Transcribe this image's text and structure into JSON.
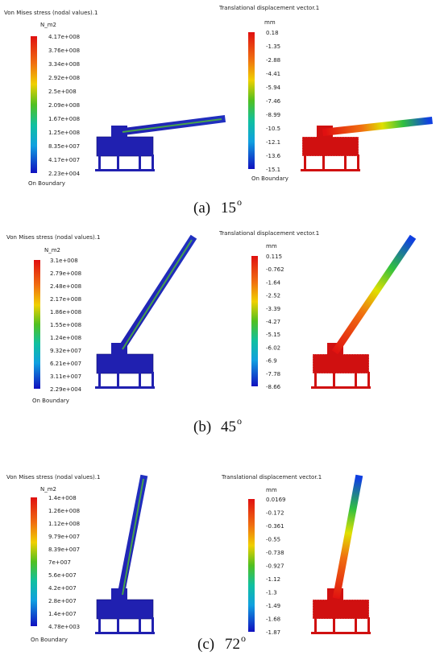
{
  "panels": [
    {
      "stress": {
        "title": "Von Mises stress (nodal values).1",
        "unit": "N_m2",
        "labels": [
          "4.17e+008",
          "3.76e+008",
          "3.34e+008",
          "2.92e+008",
          "2.5e+008",
          "2.09e+008",
          "1.67e+008",
          "1.25e+008",
          "8.35e+007",
          "4.17e+007",
          "2.23e+004"
        ],
        "footer": "On Boundary"
      },
      "displacement": {
        "title": "Translational displacement vector.1",
        "unit": "mm",
        "labels": [
          "0.18",
          "-1.35",
          "-2.88",
          "-4.41",
          "-5.94",
          "-7.46",
          "-8.99",
          "-10.5",
          "-12.1",
          "-13.6",
          "-15.1"
        ],
        "footer": "On Boundary"
      },
      "caption": {
        "label": "(a)",
        "angle": "15",
        "degree": "o"
      }
    },
    {
      "stress": {
        "title": "Von Mises stress (nodal values).1",
        "unit": "N_m2",
        "labels": [
          "3.1e+008",
          "2.79e+008",
          "2.48e+008",
          "2.17e+008",
          "1.86e+008",
          "1.55e+008",
          "1.24e+008",
          "9.32e+007",
          "6.21e+007",
          "3.11e+007",
          "2.29e+004"
        ],
        "footer": "On Boundary"
      },
      "displacement": {
        "title": "Translational displacement vector.1",
        "unit": "mm",
        "labels": [
          "0.115",
          "-0.762",
          "-1.64",
          "-2.52",
          "-3.39",
          "-4.27",
          "-5.15",
          "-6.02",
          "-6.9",
          "-7.78",
          "-8.66"
        ]
      },
      "caption": {
        "label": "(b)",
        "angle": "45",
        "degree": "o"
      }
    },
    {
      "stress": {
        "title": "Von Mises stress (nodal values).1",
        "unit": "N_m2",
        "labels": [
          "1.4e+008",
          "1.26e+008",
          "1.12e+008",
          "9.79e+007",
          "8.39e+007",
          "7e+007",
          "5.6e+007",
          "4.2e+007",
          "2.8e+007",
          "1.4e+007",
          "4.78e+003"
        ],
        "footer": "On Boundary"
      },
      "displacement": {
        "title": "Translational displacement vector.1",
        "unit": "mm",
        "labels": [
          "0.0169",
          "-0.172",
          "-0.361",
          "-0.55",
          "-0.738",
          "-0.927",
          "-1.12",
          "-1.3",
          "-1.49",
          "-1.68",
          "-1.87"
        ]
      },
      "caption": {
        "label": "(c)",
        "angle": "72",
        "degree": "o"
      }
    }
  ]
}
